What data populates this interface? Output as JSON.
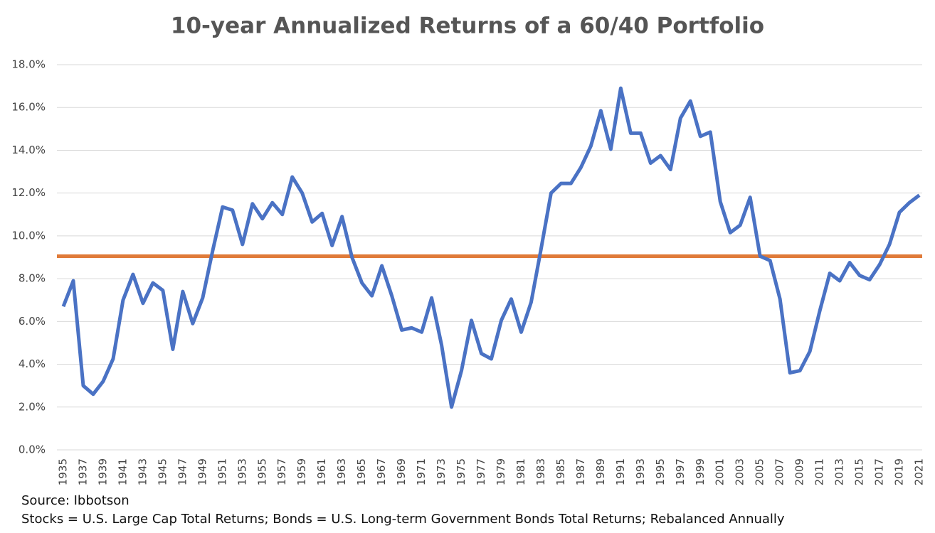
{
  "chart_data": {
    "type": "line",
    "title": "10-year Annualized Returns of a 60/40 Portfolio",
    "notes": [
      "Source: Ibbotson",
      "Stocks = U.S. Large Cap Total Returns; Bonds = U.S. Long-term Government Bonds Total Returns; Rebalanced Annually"
    ],
    "categories": [
      "1935",
      null,
      "1937",
      null,
      "1939",
      null,
      "1941",
      null,
      "1943",
      null,
      "1945",
      null,
      "1947",
      null,
      "1949",
      null,
      "1951",
      null,
      "1953",
      null,
      "1955",
      null,
      "1957",
      null,
      "1959",
      null,
      "1961",
      null,
      "1963",
      null,
      "1965",
      null,
      "1967",
      null,
      "1969",
      null,
      "1971",
      null,
      "1973",
      null,
      "1975",
      null,
      "1977",
      null,
      "1979",
      null,
      "1981",
      null,
      "1983",
      null,
      "1985",
      null,
      "1987",
      null,
      "1989",
      null,
      "1991",
      null,
      "1993",
      null,
      "1995",
      null,
      "1997",
      null,
      "1999",
      null,
      "2001",
      null,
      "2003",
      null,
      "2005",
      null,
      "2007",
      null,
      "2009",
      null,
      "2011",
      null,
      "2013",
      null,
      "2015",
      null,
      "2017",
      null,
      "2019",
      null,
      "2021"
    ],
    "series": [
      {
        "color": "#4a72c4",
        "values": [
          6.7,
          7.9,
          3.0,
          2.6,
          3.2,
          4.25,
          7.0,
          8.2,
          6.85,
          7.8,
          7.45,
          4.7,
          7.4,
          5.9,
          7.1,
          9.3,
          11.35,
          11.2,
          9.6,
          11.5,
          10.8,
          11.55,
          11.0,
          12.75,
          12.0,
          10.65,
          11.05,
          9.55,
          10.9,
          9.0,
          7.8,
          7.2,
          8.6,
          7.2,
          5.6,
          5.7,
          5.5,
          7.1,
          4.9,
          2.0,
          3.7,
          6.05,
          4.5,
          4.25,
          6.05,
          7.05,
          5.5,
          6.9,
          9.4,
          12.0,
          12.45,
          12.45,
          13.2,
          14.2,
          15.85,
          14.05,
          16.9,
          14.8,
          14.8,
          13.4,
          13.75,
          13.1,
          15.5,
          16.3,
          14.65,
          14.85,
          11.6,
          10.15,
          10.5,
          11.8,
          9.05,
          8.85,
          7.05,
          3.6,
          3.7,
          4.6,
          6.5,
          8.25,
          7.9,
          8.75,
          8.15,
          7.95,
          8.65,
          9.6,
          11.1,
          11.55,
          11.9
        ]
      }
    ],
    "hlines": [
      {
        "value": 9.05,
        "color": "#e07b39"
      }
    ],
    "ylim": [
      0,
      18
    ],
    "yticks": [
      {
        "value": 0,
        "label": "0.0%"
      },
      {
        "value": 2,
        "label": "2.0%"
      },
      {
        "value": 4,
        "label": "4.0%"
      },
      {
        "value": 6,
        "label": "6.0%"
      },
      {
        "value": 8,
        "label": "8.0%"
      },
      {
        "value": 10,
        "label": "10.0%"
      },
      {
        "value": 12,
        "label": "12.0%"
      },
      {
        "value": 14,
        "label": "14.0%"
      },
      {
        "value": 16,
        "label": "16.0%"
      },
      {
        "value": 18,
        "label": "18.0%"
      }
    ],
    "grid": true
  }
}
